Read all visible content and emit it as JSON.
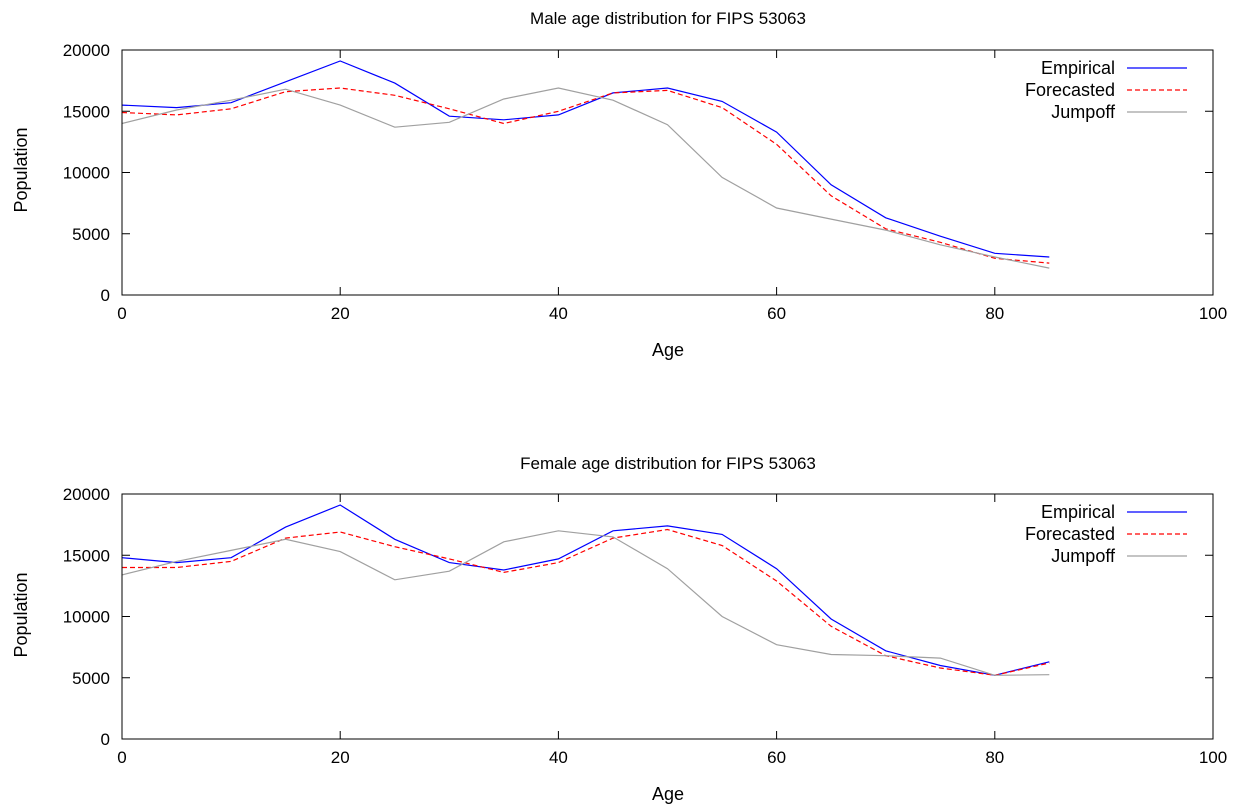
{
  "chart_data": [
    {
      "type": "line",
      "title": "Male age distribution for FIPS 53063",
      "xlabel": "Age",
      "ylabel": "Population",
      "xlim": [
        0,
        100
      ],
      "ylim": [
        0,
        20000
      ],
      "xticks": [
        0,
        20,
        40,
        60,
        80,
        100
      ],
      "yticks": [
        0,
        5000,
        10000,
        15000,
        20000
      ],
      "grid": false,
      "legend_position": "top-right",
      "x": [
        0,
        5,
        10,
        15,
        20,
        25,
        30,
        35,
        40,
        45,
        50,
        55,
        60,
        65,
        70,
        75,
        80,
        85
      ],
      "series": [
        {
          "name": "Empirical",
          "color": "#0000ff",
          "dash": "solid",
          "values": [
            15500,
            15300,
            15700,
            17400,
            19100,
            17300,
            14600,
            14300,
            14700,
            16500,
            16900,
            15800,
            13300,
            9000,
            6300,
            4800,
            3400,
            3100
          ]
        },
        {
          "name": "Forecasted",
          "color": "#ff0000",
          "dash": "dashed",
          "values": [
            14900,
            14700,
            15200,
            16600,
            16900,
            16300,
            15200,
            14000,
            15000,
            16500,
            16700,
            15300,
            12300,
            8100,
            5400,
            4300,
            3000,
            2600
          ]
        },
        {
          "name": "Jumpoff",
          "color": "#a0a0a0",
          "dash": "solid",
          "values": [
            14000,
            15100,
            15900,
            16800,
            15500,
            13700,
            14100,
            16000,
            16900,
            15900,
            13900,
            9600,
            7100,
            6200,
            5300,
            4100,
            3100,
            2200
          ]
        }
      ]
    },
    {
      "type": "line",
      "title": "Female age distribution for FIPS 53063",
      "xlabel": "Age",
      "ylabel": "Population",
      "xlim": [
        0,
        100
      ],
      "ylim": [
        0,
        20000
      ],
      "xticks": [
        0,
        20,
        40,
        60,
        80,
        100
      ],
      "yticks": [
        0,
        5000,
        10000,
        15000,
        20000
      ],
      "grid": false,
      "legend_position": "top-right",
      "x": [
        0,
        5,
        10,
        15,
        20,
        25,
        30,
        35,
        40,
        45,
        50,
        55,
        60,
        65,
        70,
        75,
        80,
        85
      ],
      "series": [
        {
          "name": "Empirical",
          "color": "#0000ff",
          "dash": "solid",
          "values": [
            14800,
            14400,
            14800,
            17300,
            19100,
            16300,
            14400,
            13800,
            14700,
            17000,
            17400,
            16700,
            13900,
            9800,
            7200,
            6000,
            5200,
            6300
          ]
        },
        {
          "name": "Forecasted",
          "color": "#ff0000",
          "dash": "dashed",
          "values": [
            14000,
            14000,
            14500,
            16400,
            16900,
            15700,
            14700,
            13600,
            14400,
            16400,
            17100,
            15800,
            12900,
            9200,
            6800,
            5800,
            5200,
            6200
          ]
        },
        {
          "name": "Jumpoff",
          "color": "#a0a0a0",
          "dash": "solid",
          "values": [
            13400,
            14500,
            15400,
            16300,
            15300,
            13000,
            13700,
            16100,
            17000,
            16500,
            13900,
            10000,
            7700,
            6900,
            6800,
            6600,
            5200,
            5250
          ]
        }
      ]
    }
  ]
}
